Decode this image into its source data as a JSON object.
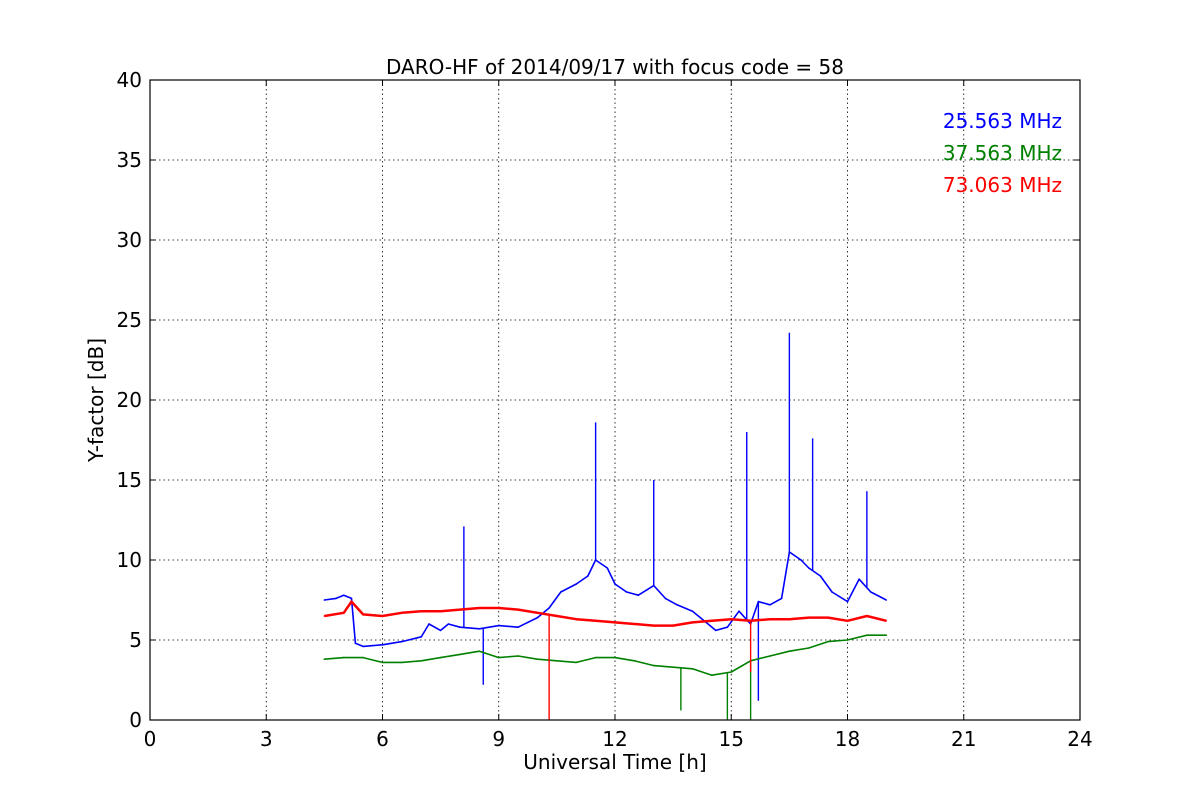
{
  "chart_data": {
    "type": "line",
    "title": "DARO-HF of 2014/09/17 with focus code = 58",
    "xlabel": "Universal Time [h]",
    "ylabel": "Y-factor [dB]",
    "xlim": [
      0,
      24
    ],
    "ylim": [
      0,
      40
    ],
    "xticks": [
      "0",
      "3",
      "6",
      "9",
      "12",
      "15",
      "18",
      "21",
      "24"
    ],
    "yticks": [
      "0",
      "5",
      "10",
      "15",
      "20",
      "25",
      "30",
      "35",
      "40"
    ],
    "grid": true,
    "legend_position": "top-right",
    "series": [
      {
        "name": "25.563 MHz",
        "color": "#0000ff",
        "x": [
          4.5,
          4.8,
          5.0,
          5.2,
          5.3,
          5.5,
          6.0,
          6.5,
          7.0,
          7.2,
          7.5,
          7.7,
          8.0,
          8.5,
          9.0,
          9.5,
          10.0,
          10.3,
          10.6,
          11.0,
          11.3,
          11.5,
          11.8,
          12.0,
          12.3,
          12.6,
          13.0,
          13.3,
          13.6,
          14.0,
          14.3,
          14.6,
          14.9,
          15.2,
          15.5,
          15.7,
          16.0,
          16.3,
          16.5,
          16.8,
          17.0,
          17.3,
          17.6,
          18.0,
          18.3,
          18.6,
          19.0
        ],
        "y": [
          7.5,
          7.6,
          7.8,
          7.6,
          4.8,
          4.6,
          4.7,
          4.9,
          5.2,
          6.0,
          5.6,
          6.0,
          5.8,
          5.7,
          5.9,
          5.8,
          6.4,
          7.0,
          8.0,
          8.5,
          9.0,
          10.0,
          9.5,
          8.5,
          8.0,
          7.8,
          8.4,
          7.6,
          7.2,
          6.8,
          6.2,
          5.6,
          5.8,
          6.8,
          6.0,
          7.4,
          7.2,
          7.6,
          10.5,
          10.0,
          9.5,
          9.0,
          8.0,
          7.4,
          8.8,
          8.0,
          7.5
        ]
      },
      {
        "name": "37.563 MHz",
        "color": "#008000",
        "x": [
          4.5,
          5.0,
          5.5,
          6.0,
          6.5,
          7.0,
          7.5,
          8.0,
          8.5,
          9.0,
          9.5,
          10.0,
          10.5,
          11.0,
          11.5,
          12.0,
          12.5,
          13.0,
          13.5,
          14.0,
          14.5,
          15.0,
          15.5,
          16.0,
          16.5,
          17.0,
          17.5,
          18.0,
          18.5,
          19.0
        ],
        "y": [
          3.8,
          3.9,
          3.9,
          3.6,
          3.6,
          3.7,
          3.9,
          4.1,
          4.3,
          3.9,
          4.0,
          3.8,
          3.7,
          3.6,
          3.9,
          3.9,
          3.7,
          3.4,
          3.3,
          3.2,
          2.8,
          3.0,
          3.7,
          4.0,
          4.3,
          4.5,
          4.9,
          5.0,
          5.3,
          5.3
        ]
      },
      {
        "name": "73.063 MHz",
        "color": "#ff0000",
        "x": [
          4.5,
          5.0,
          5.2,
          5.5,
          6.0,
          6.5,
          7.0,
          7.5,
          8.0,
          8.5,
          9.0,
          9.5,
          10.0,
          10.5,
          11.0,
          11.5,
          12.0,
          12.5,
          13.0,
          13.5,
          14.0,
          14.5,
          15.0,
          15.5,
          16.0,
          16.5,
          17.0,
          17.5,
          18.0,
          18.5,
          19.0
        ],
        "y": [
          6.5,
          6.7,
          7.4,
          6.6,
          6.5,
          6.7,
          6.8,
          6.8,
          6.9,
          7.0,
          7.0,
          6.9,
          6.7,
          6.5,
          6.3,
          6.2,
          6.1,
          6.0,
          5.9,
          5.9,
          6.1,
          6.2,
          6.3,
          6.2,
          6.3,
          6.3,
          6.4,
          6.4,
          6.2,
          6.5,
          6.2
        ]
      }
    ],
    "spikes": [
      {
        "series": "25.563 MHz",
        "x": 8.1,
        "y": 12.1
      },
      {
        "series": "25.563 MHz",
        "x": 11.5,
        "y": 18.6
      },
      {
        "series": "25.563 MHz",
        "x": 13.0,
        "y": 15.0
      },
      {
        "series": "25.563 MHz",
        "x": 15.4,
        "y": 18.0
      },
      {
        "series": "25.563 MHz",
        "x": 16.5,
        "y": 24.2
      },
      {
        "series": "25.563 MHz",
        "x": 17.1,
        "y": 17.6
      },
      {
        "series": "25.563 MHz",
        "x": 18.5,
        "y": 14.3
      },
      {
        "series": "25.563 MHz",
        "x": 8.6,
        "y": 2.2
      },
      {
        "series": "25.563 MHz",
        "x": 15.7,
        "y": 1.2
      },
      {
        "series": "37.563 MHz",
        "x": 13.7,
        "y": 0.6
      },
      {
        "series": "37.563 MHz",
        "x": 14.9,
        "y": 0.0
      },
      {
        "series": "37.563 MHz",
        "x": 15.5,
        "y": 0.0
      },
      {
        "series": "73.063 MHz",
        "x": 10.3,
        "y": 0.0
      },
      {
        "series": "73.063 MHz",
        "x": 15.5,
        "y": 3.0
      }
    ]
  }
}
